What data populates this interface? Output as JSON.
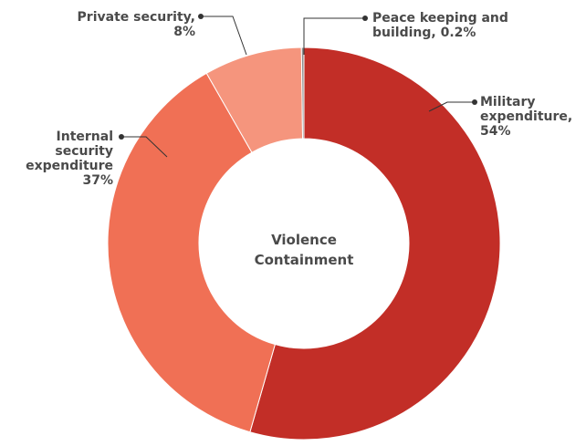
{
  "chart_data": {
    "type": "donut",
    "center_label": [
      "Violence",
      "Containment"
    ],
    "slices": [
      {
        "name": "Military expenditure",
        "value": 54,
        "color": "#c22e27",
        "label_lines": [
          "Military",
          "expenditure,",
          "54%"
        ]
      },
      {
        "name": "Internal security expenditure",
        "value": 37,
        "color": "#f07055",
        "label_lines": [
          "Internal",
          "security",
          "expenditure",
          "37%"
        ]
      },
      {
        "name": "Private security",
        "value": 8,
        "color": "#f5957d",
        "label_lines": [
          "Private security,",
          "8%"
        ]
      },
      {
        "name": "Peace keeping and building",
        "value": 0.2,
        "color": "#8a8a8a",
        "label_lines": [
          "Peace keeping and",
          "building, 0.2%"
        ]
      }
    ]
  }
}
